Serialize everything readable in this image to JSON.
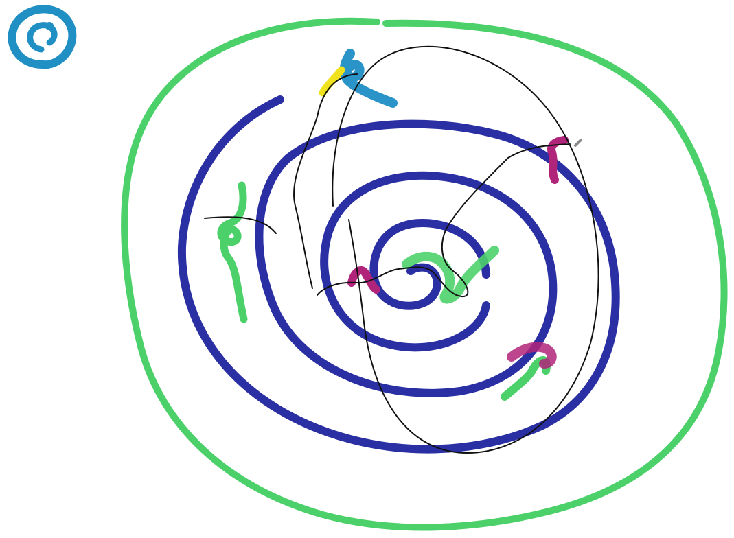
{
  "colors": {
    "background": "#ffffff",
    "outer_ring": "#4cd16a",
    "spiral": "#2a2fa3",
    "app_icon": "#1f8fc4",
    "cyan_mark": "#2a93c8",
    "yellow_mark": "#f1e21e",
    "magenta_mark": "#b0247a",
    "green_mark": "#4cd16a",
    "pen_line": "#111111",
    "gray_mark": "#8a8a8a"
  },
  "icons": {
    "corner": "spiral-app-icon"
  }
}
